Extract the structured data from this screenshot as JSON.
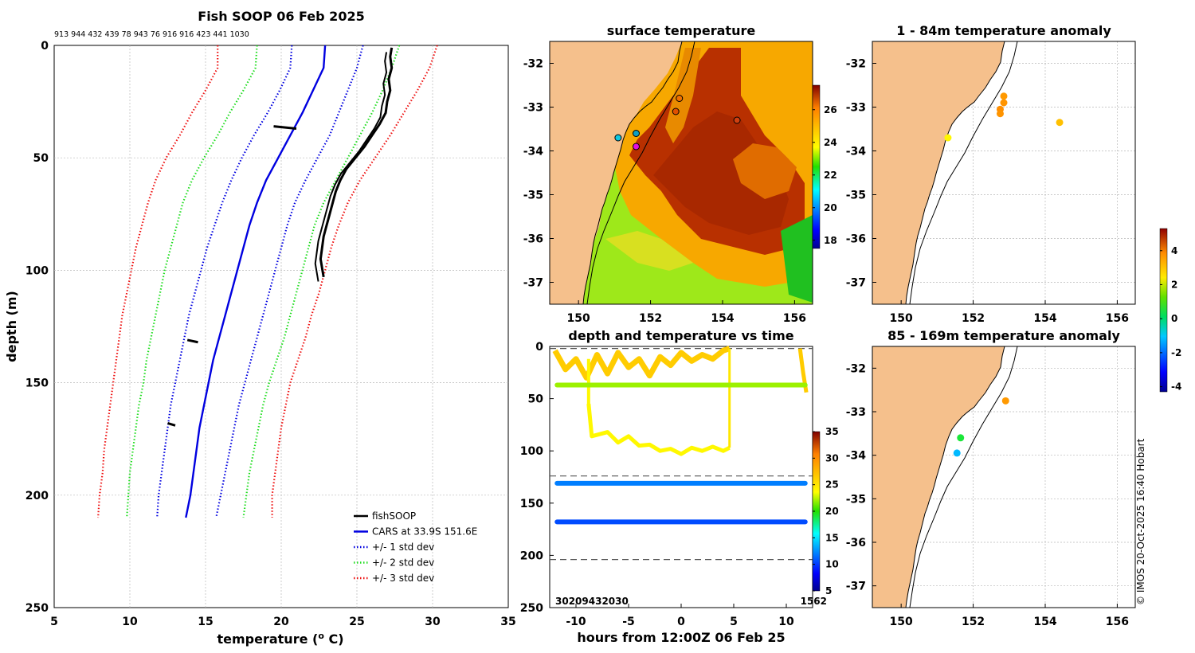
{
  "chart_data": [
    {
      "type": "line",
      "title": "Fish SOOP 06 Feb 2025",
      "subtitle": "913 944 432 439 78 943 76 916 916 423 441 1030",
      "xlabel": "temperature (o C)",
      "ylabel": "depth (m)",
      "xlim": [
        5,
        35
      ],
      "ylim": [
        250,
        0
      ],
      "xticks": [
        "5",
        "10",
        "15",
        "20",
        "25",
        "30",
        "35"
      ],
      "yticks": [
        "0",
        "50",
        "100",
        "150",
        "200",
        "250"
      ],
      "legend_position": "bottom-right",
      "legend": [
        "fishSOOP",
        "CARS at 33.9S 151.6E",
        "+/- 1 std dev",
        "+/- 2 std dev",
        "+/- 3 std dev"
      ],
      "depths": [
        0,
        10,
        20,
        30,
        40,
        50,
        60,
        70,
        80,
        90,
        100,
        110,
        120,
        130,
        140,
        150,
        160,
        170,
        180,
        190,
        200,
        210
      ],
      "series": [
        {
          "name": "CARS at 33.9S 151.6E",
          "color": "#0000e0",
          "style": "solid",
          "temps": [
            22.9,
            22.8,
            22.1,
            21.4,
            20.6,
            19.8,
            19.0,
            18.4,
            17.9,
            17.5,
            17.1,
            16.7,
            16.3,
            15.9,
            15.5,
            15.2,
            14.9,
            14.6,
            14.4,
            14.2,
            14.0,
            13.7
          ]
        },
        {
          "name": "+1 std dev",
          "color": "#0000e0",
          "style": "dotted",
          "temps": [
            25.4,
            25.0,
            24.4,
            23.8,
            23.2,
            22.4,
            21.6,
            20.9,
            20.4,
            20.0,
            19.6,
            19.2,
            18.8,
            18.4,
            18.0,
            17.6,
            17.2,
            16.9,
            16.6,
            16.3,
            16.0,
            15.7
          ]
        },
        {
          "name": "-1 std dev",
          "color": "#0000e0",
          "style": "dotted",
          "temps": [
            20.7,
            20.6,
            19.9,
            19.1,
            18.2,
            17.4,
            16.7,
            16.1,
            15.6,
            15.1,
            14.7,
            14.3,
            13.9,
            13.6,
            13.3,
            13.0,
            12.7,
            12.5,
            12.3,
            12.1,
            11.9,
            11.8
          ]
        },
        {
          "name": "+2 std dev",
          "color": "#20dd20",
          "style": "dotted",
          "temps": [
            27.8,
            27.3,
            26.7,
            26.0,
            25.2,
            24.4,
            23.6,
            22.8,
            22.2,
            21.8,
            21.4,
            21.0,
            20.6,
            20.2,
            19.7,
            19.2,
            18.8,
            18.5,
            18.2,
            17.9,
            17.7,
            17.5
          ]
        },
        {
          "name": "-2 std dev",
          "color": "#20dd20",
          "style": "dotted",
          "temps": [
            18.4,
            18.3,
            17.5,
            16.6,
            15.8,
            14.9,
            14.1,
            13.5,
            13.1,
            12.7,
            12.3,
            12.0,
            11.7,
            11.4,
            11.1,
            10.9,
            10.6,
            10.4,
            10.2,
            10.0,
            9.9,
            9.8
          ]
        },
        {
          "name": "+3 std dev",
          "color": "#ee1010",
          "style": "dotted",
          "temps": [
            30.3,
            29.8,
            29.0,
            28.1,
            27.2,
            26.2,
            25.2,
            24.4,
            23.8,
            23.3,
            22.9,
            22.5,
            22.0,
            21.6,
            21.1,
            20.6,
            20.3,
            20.0,
            19.8,
            19.6,
            19.4,
            19.4
          ]
        },
        {
          "name": "-3 std dev",
          "color": "#ee1010",
          "style": "dotted",
          "temps": [
            15.8,
            15.8,
            15.0,
            14.1,
            13.3,
            12.4,
            11.7,
            11.2,
            10.8,
            10.4,
            10.1,
            9.8,
            9.5,
            9.3,
            9.1,
            8.9,
            8.7,
            8.5,
            8.3,
            8.2,
            8.0,
            7.9
          ]
        }
      ],
      "fishsoop": {
        "name": "fishSOOP",
        "color": "#000000",
        "profile_temp": [
          27.3,
          27.2,
          27.3,
          27.1,
          27.2,
          27.0,
          26.9,
          26.5,
          26.0,
          25.5,
          24.9,
          24.3,
          23.9,
          23.6,
          23.4,
          23.2,
          23.0,
          22.8,
          22.7,
          22.6,
          22.8
        ],
        "profile_depth": [
          1,
          5,
          10,
          15,
          20,
          25,
          30,
          35,
          40,
          45,
          50,
          55,
          60,
          65,
          70,
          75,
          80,
          85,
          90,
          95,
          103
        ],
        "fragments": [
          {
            "temp": [
              19.5,
              21.0
            ],
            "depth": [
              36,
              37
            ]
          },
          {
            "temp": [
              13.8,
              14.5
            ],
            "depth": [
              131,
              132
            ]
          },
          {
            "temp": [
              12.5,
              13.0
            ],
            "depth": [
              168,
              169
            ]
          }
        ]
      }
    },
    {
      "type": "heatmap",
      "title": "surface temperature",
      "xlim": [
        149.2,
        156.5
      ],
      "ylim": [
        -37.5,
        -31.5
      ],
      "xticks": [
        "150",
        "152",
        "154",
        "156"
      ],
      "yticks": [
        "-32",
        "-33",
        "-34",
        "-35",
        "-36",
        "-37"
      ],
      "colorbar_ticks": [
        "18",
        "20",
        "22",
        "24",
        "26"
      ],
      "colorbar_range": [
        17.5,
        27.5
      ],
      "stations": [
        {
          "lon": 151.1,
          "lat": -33.7,
          "color": "#10c8e0"
        },
        {
          "lon": 151.6,
          "lat": -33.6,
          "color": "#10a0c0"
        },
        {
          "lon": 151.6,
          "lat": -33.9,
          "color": "#e010e0"
        },
        {
          "lon": 152.8,
          "lat": -32.8,
          "color": "#f07000"
        },
        {
          "lon": 152.7,
          "lat": -33.1,
          "color": "#e05000"
        },
        {
          "lon": 154.4,
          "lat": -33.3,
          "color": "#d04010"
        }
      ]
    },
    {
      "type": "scatter",
      "title": "depth and temperature vs time",
      "xlabel": "hours from 12:00Z 06 Feb 25",
      "xlim": [
        -12.5,
        12.5
      ],
      "ylim": [
        250,
        0
      ],
      "xticks": [
        "-10",
        "-5",
        "0",
        "5",
        "10"
      ],
      "yticks": [
        "0",
        "50",
        "100",
        "150",
        "200",
        "250"
      ],
      "colorbar_ticks": [
        "5",
        "10",
        "15",
        "20",
        "25",
        "30",
        "35"
      ],
      "colorbar_range": [
        5,
        35
      ],
      "left_label": "30209432030",
      "right_label": "1562",
      "dashed_lines": [
        2,
        124,
        204
      ],
      "tracks": [
        {
          "temp": 22,
          "hours": [
            -11.8,
            11.8
          ],
          "depth": [
            37,
            37
          ]
        },
        {
          "temp": 12,
          "hours": [
            -11.8,
            11.8
          ],
          "depth": [
            131,
            131
          ]
        },
        {
          "temp": 10.5,
          "hours": [
            -11.8,
            11.8
          ],
          "depth": [
            168,
            168
          ]
        }
      ],
      "shallow": {
        "temp": 26.5,
        "hours": [
          -12,
          -11,
          -10,
          -9,
          -8,
          -7,
          -6,
          -5,
          -4,
          -3,
          -2,
          -1,
          0,
          1,
          2,
          3,
          4,
          4.6
        ],
        "depth": [
          4,
          22,
          12,
          30,
          8,
          26,
          6,
          20,
          12,
          28,
          10,
          18,
          6,
          14,
          8,
          12,
          4,
          2
        ]
      },
      "dive": {
        "temp": 24,
        "hours": [
          -8.8,
          -8.5,
          -7,
          -6,
          -5,
          -4,
          -3,
          -2,
          -1,
          0,
          1,
          2,
          3,
          4,
          4.6
        ],
        "depth": [
          55,
          86,
          82,
          92,
          86,
          95,
          94,
          100,
          98,
          103,
          97,
          100,
          96,
          100,
          97
        ]
      },
      "end_drop": {
        "temp": 26.5,
        "hours": [
          11.3,
          11.6,
          11.9
        ],
        "depth": [
          2,
          25,
          44
        ]
      }
    },
    {
      "type": "scatter",
      "title": "1 - 84m temperature anomaly",
      "xlim": [
        149.2,
        156.5
      ],
      "ylim": [
        -37.5,
        -31.5
      ],
      "xticks": [
        "150",
        "152",
        "154",
        "156"
      ],
      "yticks": [
        "-32",
        "-33",
        "-34",
        "-35",
        "-36",
        "-37"
      ],
      "points": [
        {
          "lon": 152.85,
          "lat": -32.75,
          "anomaly": 3.5
        },
        {
          "lon": 152.85,
          "lat": -32.9,
          "anomaly": 3.6
        },
        {
          "lon": 152.75,
          "lat": -33.05,
          "anomaly": 3.7
        },
        {
          "lon": 152.75,
          "lat": -33.15,
          "anomaly": 3.6
        },
        {
          "lon": 154.4,
          "lat": -33.35,
          "anomaly": 2.8
        },
        {
          "lon": 151.3,
          "lat": -33.7,
          "anomaly": 1.8
        }
      ]
    },
    {
      "type": "scatter",
      "title": "85 - 169m temperature anomaly",
      "xlim": [
        149.2,
        156.5
      ],
      "ylim": [
        -37.5,
        -31.5
      ],
      "xticks": [
        "150",
        "152",
        "154",
        "156"
      ],
      "yticks": [
        "-32",
        "-33",
        "-34",
        "-35",
        "-36",
        "-37"
      ],
      "colorbar_ticks": [
        "-4",
        "-2",
        "0",
        "2",
        "4"
      ],
      "colorbar_range": [
        -4.3,
        5.3
      ],
      "points": [
        {
          "lon": 152.9,
          "lat": -32.75,
          "anomaly": 3.5
        },
        {
          "lon": 151.65,
          "lat": -33.6,
          "anomaly": 0.2
        },
        {
          "lon": 151.55,
          "lat": -33.95,
          "anomaly": -1.5
        }
      ]
    }
  ],
  "credit": "© IMOS 20-Oct-2025 16:40 Hobart"
}
